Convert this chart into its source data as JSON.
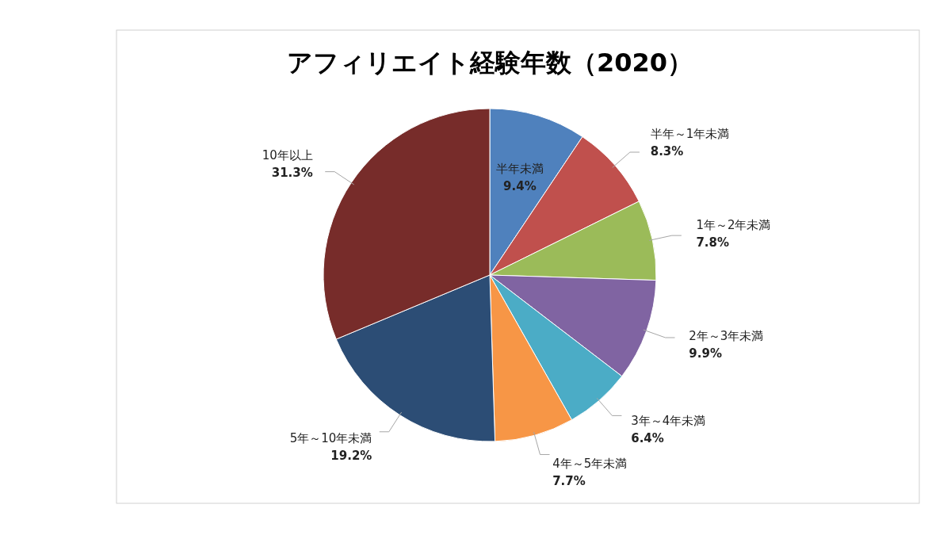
{
  "chart_data": {
    "type": "pie",
    "title": "アフィリエイト経験年数（2020）",
    "categories": [
      "半年未満",
      "半年～1年未満",
      "1年～2年未満",
      "2年～3年未満",
      "3年～4年未満",
      "4年～5年未満",
      "5年～10年未満",
      "10年以上"
    ],
    "values": [
      9.4,
      8.3,
      7.8,
      9.9,
      6.4,
      7.7,
      19.2,
      31.3
    ],
    "value_labels": [
      "9.4%",
      "8.3%",
      "7.8%",
      "9.9%",
      "6.4%",
      "7.7%",
      "19.2%",
      "31.3%"
    ],
    "colors": [
      "#4f81bd",
      "#c0504d",
      "#9bbb59",
      "#8064a2",
      "#4bacc6",
      "#f79646",
      "#2c4d75",
      "#772c2a"
    ]
  }
}
